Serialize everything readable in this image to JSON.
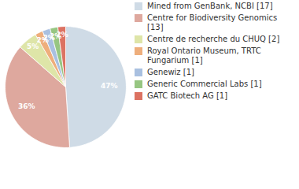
{
  "chart_data": {
    "type": "pie",
    "categories": [
      "Mined from GenBank, NCBI [17]",
      "Centre for Biodiversity Genomics [13]",
      "Centre de recherche du CHUQ [2]",
      "Royal Ontario Museum, TRTC Fungarium [1]",
      "Genewiz [1]",
      "Generic Commercial Labs [1]",
      "GATC Biotech AG [1]"
    ],
    "values": [
      47,
      36,
      5,
      2,
      2,
      2,
      2
    ],
    "value_labels": [
      "47%",
      "36%",
      "5%",
      "2%",
      "2%",
      "2%",
      "2%"
    ],
    "colors": [
      "#cfdbe6",
      "#dea89e",
      "#dee5a8",
      "#eeae7c",
      "#a9c0e0",
      "#97c682",
      "#dc7262"
    ],
    "data_labels": true,
    "legend": "right"
  }
}
